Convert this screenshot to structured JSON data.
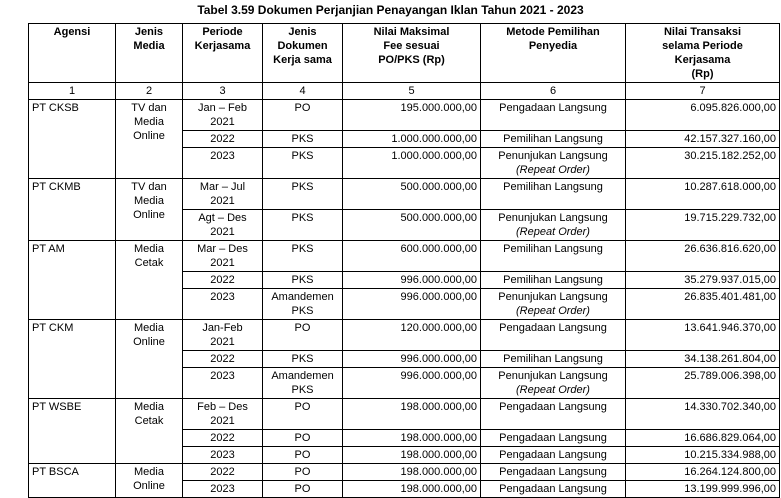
{
  "title": "Tabel 3.59 Dokumen Perjanjian Penayangan Iklan Tahun 2021 - 2023",
  "table": {
    "headers": [
      "Agensi",
      "Jenis\nMedia",
      "Periode\nKerjasama",
      "Jenis\nDokumen\nKerja sama",
      "Nilai Maksimal\nFee sesuai\nPO/PKS (Rp)",
      "Metode Pemilihan\nPenyedia",
      "Nilai Transaksi\nselama Periode\nKerjasama\n(Rp)"
    ],
    "numbering": [
      "1",
      "2",
      "3",
      "4",
      "5",
      "6",
      "7"
    ],
    "groups": [
      {
        "agensi": "PT CKSB",
        "media": "TV dan\nMedia\nOnline",
        "rows": [
          {
            "periode": "Jan – Feb\n2021",
            "dokumen": "PO",
            "fee": "195.000.000,00",
            "metode": "Pengadaan Langsung",
            "metode_note": "",
            "nilai": "6.095.826.000,00"
          },
          {
            "periode": "2022",
            "dokumen": "PKS",
            "fee": "1.000.000.000,00",
            "metode": "Pemilihan Langsung",
            "metode_note": "",
            "nilai": "42.157.327.160,00"
          },
          {
            "periode": "2023",
            "dokumen": "PKS",
            "fee": "1.000.000.000,00",
            "metode": "Penunjukan Langsung",
            "metode_note": "(Repeat Order)",
            "nilai": "30.215.182.252,00"
          }
        ]
      },
      {
        "agensi": "PT CKMB",
        "media": "TV dan\nMedia\nOnline",
        "rows": [
          {
            "periode": "Mar – Jul\n2021",
            "dokumen": "PKS",
            "fee": "500.000.000,00",
            "metode": "Pemilihan Langsung",
            "metode_note": "",
            "nilai": "10.287.618.000,00"
          },
          {
            "periode": "Agt – Des\n2021",
            "dokumen": "PKS",
            "fee": "500.000.000,00",
            "metode": "Penunjukan Langsung",
            "metode_note": "(Repeat Order)",
            "nilai": "19.715.229.732,00"
          }
        ]
      },
      {
        "agensi": "PT AM",
        "media": "Media\nCetak",
        "rows": [
          {
            "periode": "Mar – Des\n2021",
            "dokumen": "PKS",
            "fee": "600.000.000,00",
            "metode": "Pemilihan Langsung",
            "metode_note": "",
            "nilai": "26.636.816.620,00"
          },
          {
            "periode": "2022",
            "dokumen": "PKS",
            "fee": "996.000.000,00",
            "metode": "Pemilihan Langsung",
            "metode_note": "",
            "nilai": "35.279.937.015,00"
          },
          {
            "periode": "2023",
            "dokumen": "Amandemen\nPKS",
            "fee": "996.000.000,00",
            "metode": "Penunjukan Langsung",
            "metode_note": "(Repeat Order)",
            "nilai": "26.835.401.481,00"
          }
        ]
      },
      {
        "agensi": "PT CKM",
        "media": "Media\nOnline",
        "rows": [
          {
            "periode": "Jan-Feb\n2021",
            "dokumen": "PO",
            "fee": "120.000.000,00",
            "metode": "Pengadaan Langsung",
            "metode_note": "",
            "nilai": "13.641.946.370,00"
          },
          {
            "periode": "2022",
            "dokumen": "PKS",
            "fee": "996.000.000,00",
            "metode": "Pemilihan Langsung",
            "metode_note": "",
            "nilai": "34.138.261.804,00"
          },
          {
            "periode": "2023",
            "dokumen": "Amandemen\nPKS",
            "fee": "996.000.000,00",
            "metode": "Penunjukan Langsung",
            "metode_note": "(Repeat Order)",
            "nilai": "25.789.006.398,00"
          }
        ]
      },
      {
        "agensi": "PT WSBE",
        "media": "Media\nCetak",
        "rows": [
          {
            "periode": "Feb – Des\n2021",
            "dokumen": "PO",
            "fee": "198.000.000,00",
            "metode": "Pengadaan Langsung",
            "metode_note": "",
            "nilai": "14.330.702.340,00"
          },
          {
            "periode": "2022",
            "dokumen": "PO",
            "fee": "198.000.000,00",
            "metode": "Pengadaan Langsung",
            "metode_note": "",
            "nilai": "16.686.829.064,00"
          },
          {
            "periode": "2023",
            "dokumen": "PO",
            "fee": "198.000.000,00",
            "metode": "Pengadaan Langsung",
            "metode_note": "",
            "nilai": "10.215.334.988,00"
          }
        ]
      },
      {
        "agensi": "PT BSCA",
        "media": "Media\nOnline",
        "rows": [
          {
            "periode": "2022",
            "dokumen": "PO",
            "fee": "198.000.000,00",
            "metode": "Pengadaan Langsung",
            "metode_note": "",
            "nilai": "16.264.124.800,00"
          },
          {
            "periode": "2023",
            "dokumen": "PO",
            "fee": "198.000.000,00",
            "metode": "Pengadaan Langsung",
            "metode_note": "",
            "nilai": "13.199.999.996,00"
          }
        ]
      }
    ]
  }
}
